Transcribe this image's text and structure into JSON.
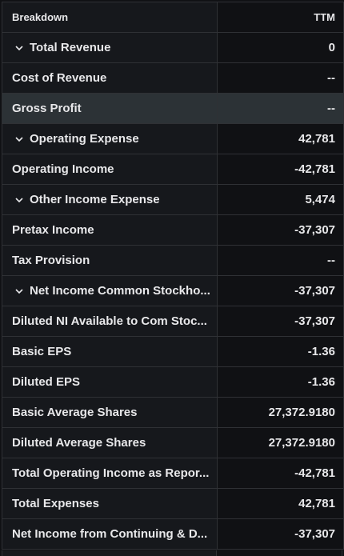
{
  "header": {
    "breakdown_label": "Breakdown",
    "period_label": "TTM"
  },
  "rows": [
    {
      "label": "Total Revenue",
      "value": "0",
      "expandable": true
    },
    {
      "label": "Cost of Revenue",
      "value": "--",
      "expandable": false
    },
    {
      "label": "Gross Profit",
      "value": "--",
      "expandable": false,
      "highlighted": true
    },
    {
      "label": "Operating Expense",
      "value": "42,781",
      "expandable": true
    },
    {
      "label": "Operating Income",
      "value": "-42,781",
      "expandable": false
    },
    {
      "label": "Other Income Expense",
      "value": "5,474",
      "expandable": true
    },
    {
      "label": "Pretax Income",
      "value": "-37,307",
      "expandable": false
    },
    {
      "label": "Tax Provision",
      "value": "--",
      "expandable": false
    },
    {
      "label": "Net Income Common Stockho...",
      "value": "-37,307",
      "expandable": true
    },
    {
      "label": "Diluted NI Available to Com Stoc...",
      "value": "-37,307",
      "expandable": false
    },
    {
      "label": "Basic EPS",
      "value": "-1.36",
      "expandable": false
    },
    {
      "label": "Diluted EPS",
      "value": "-1.36",
      "expandable": false
    },
    {
      "label": "Basic Average Shares",
      "value": "27,372.9180",
      "expandable": false
    },
    {
      "label": "Diluted Average Shares",
      "value": "27,372.9180",
      "expandable": false
    },
    {
      "label": "Total Operating Income as Repor...",
      "value": "-42,781",
      "expandable": false
    },
    {
      "label": "Total Expenses",
      "value": "42,781",
      "expandable": false
    },
    {
      "label": "Net Income from Continuing & D...",
      "value": "-37,307",
      "expandable": false
    }
  ],
  "colors": {
    "highlight_row": "#2c3236",
    "name_column_bg": "#16181c",
    "value_column_bg": "#101114"
  },
  "icons": {
    "expand": "chevron-down-icon"
  }
}
